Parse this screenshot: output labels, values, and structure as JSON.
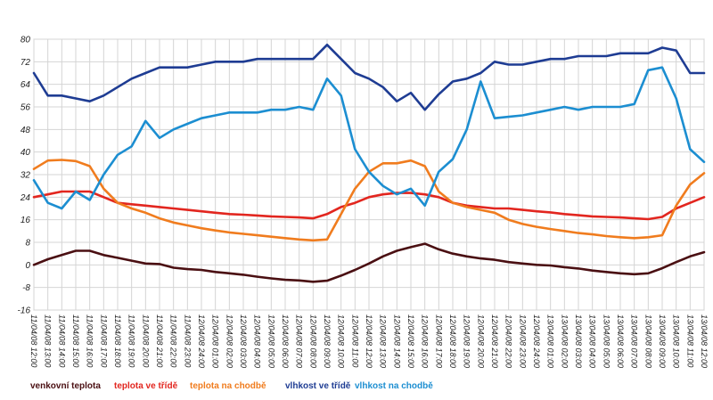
{
  "chart_data": {
    "type": "line",
    "title": "",
    "xlabel": "",
    "ylabel": "",
    "ylim": [
      -16,
      80
    ],
    "yticks": [
      -16,
      -8,
      0,
      8,
      16,
      24,
      32,
      40,
      48,
      56,
      64,
      72,
      80
    ],
    "ytick_labels": [
      "-16",
      "-8",
      "0",
      "8",
      "16",
      "24",
      "32",
      "40",
      "48",
      "56",
      "64",
      "72",
      "80"
    ],
    "grid": true,
    "legend_position": "bottom",
    "x": [
      "11/04/08 12:00",
      "11/04/08 13:00",
      "11/04/08 14:00",
      "11/04/08 15:00",
      "11/04/08 16:00",
      "11/04/08 17:00",
      "11/04/08 18:00",
      "11/04/08 19:00",
      "11/04/08 20:00",
      "11/04/08 21:00",
      "11/04/08 22:00",
      "11/04/08 23:00",
      "12/04/08 24:00",
      "12/04/08 01:00",
      "12/04/08 02:00",
      "12/04/08 03:00",
      "12/04/08 04:00",
      "12/04/08 05:00",
      "12/04/08 06:00",
      "12/04/08 07:00",
      "12/04/08 08:00",
      "12/04/08 09:00",
      "12/04/08 10:00",
      "12/04/08 11:00",
      "12/04/08 12:00",
      "12/04/08 13:00",
      "12/04/08 14:00",
      "12/04/08 15:00",
      "12/04/08 16:00",
      "12/04/08 17:00",
      "12/04/08 18:00",
      "12/04/08 19:00",
      "12/04/08 20:00",
      "12/04/08 21:00",
      "12/04/08 22:00",
      "12/04/08 23:00",
      "12/04/08 24:00",
      "13/04/08 01:00",
      "13/04/08 02:00",
      "13/04/08 03:00",
      "13/04/08 04:00",
      "13/04/08 05:00",
      "13/04/08 06:00",
      "13/04/08 07:00",
      "13/04/08 08:00",
      "13/04/08 09:00",
      "13/04/08 10:00",
      "13/04/08 11:00",
      "13/04/08 12:00"
    ],
    "series": [
      {
        "name": "venkovní teplota",
        "color": "#4a0f12",
        "values": [
          0,
          2,
          3.5,
          5,
          5,
          3.5,
          2.5,
          1.5,
          0.5,
          0.3,
          -1,
          -1.5,
          -1.8,
          -2.5,
          -3,
          -3.5,
          -4.2,
          -4.8,
          -5.3,
          -5.5,
          -6,
          -5.6,
          -3.8,
          -1.8,
          0.5,
          3,
          5,
          6.3,
          7.5,
          5.5,
          4,
          3,
          2.3,
          1.8,
          1,
          0.5,
          0,
          -0.2,
          -0.8,
          -1.3,
          -2,
          -2.5,
          -3,
          -3.3,
          -3,
          -1.2,
          1,
          3,
          4.5
        ]
      },
      {
        "name": "teplota ve třídě",
        "color": "#e2261f",
        "values": [
          24,
          25,
          26,
          26,
          26,
          24,
          22,
          21.5,
          21,
          20.5,
          20,
          19.5,
          19,
          18.5,
          18,
          17.8,
          17.5,
          17.2,
          17,
          16.8,
          16.5,
          18,
          20.5,
          22,
          24,
          25,
          25.5,
          25.5,
          25,
          24,
          22,
          21,
          20.5,
          20,
          20,
          19.5,
          19,
          18.6,
          18,
          17.6,
          17.2,
          17,
          16.8,
          16.5,
          16.2,
          17,
          20,
          22,
          24
        ]
      },
      {
        "name": "teplota na chodbě",
        "color": "#f07c1e",
        "values": [
          34,
          37,
          37.2,
          36.8,
          35,
          27,
          22,
          20,
          18.5,
          16.5,
          15,
          14,
          13,
          12.2,
          11.5,
          11,
          10.5,
          10,
          9.5,
          9,
          8.7,
          9,
          18,
          27,
          33,
          36,
          36,
          37,
          35,
          26,
          22,
          20.5,
          19.5,
          18.5,
          16,
          14.5,
          13.5,
          12.7,
          12,
          11.3,
          10.8,
          10.2,
          9.8,
          9.5,
          9.8,
          10.5,
          21,
          28.5,
          32.5
        ]
      },
      {
        "name": "vlhkost ve třídě",
        "color": "#1e3c93",
        "values": [
          68,
          60,
          60,
          59,
          58,
          60,
          63,
          66,
          68,
          70,
          70,
          70,
          71,
          72,
          72,
          72,
          73,
          73,
          73,
          73,
          73,
          78,
          73,
          68,
          66,
          63,
          58,
          61,
          55,
          60.5,
          65,
          66,
          68,
          72,
          71,
          71,
          72,
          73,
          73,
          74,
          74,
          74,
          75,
          75,
          75,
          77,
          76,
          68,
          68
        ]
      },
      {
        "name": "vlhkost na chodbě",
        "color": "#1c8ed1",
        "values": [
          30,
          22,
          20,
          26,
          23,
          32,
          39,
          42,
          51,
          45,
          48,
          50,
          52,
          53,
          54,
          54,
          54,
          55,
          55,
          56,
          55,
          66,
          60,
          41,
          33,
          28,
          25,
          27,
          21,
          33,
          37.5,
          48,
          65,
          52,
          52.5,
          53,
          54,
          55,
          56,
          55,
          56,
          56,
          56,
          57,
          69,
          70,
          59,
          41,
          36.5
        ]
      }
    ]
  }
}
